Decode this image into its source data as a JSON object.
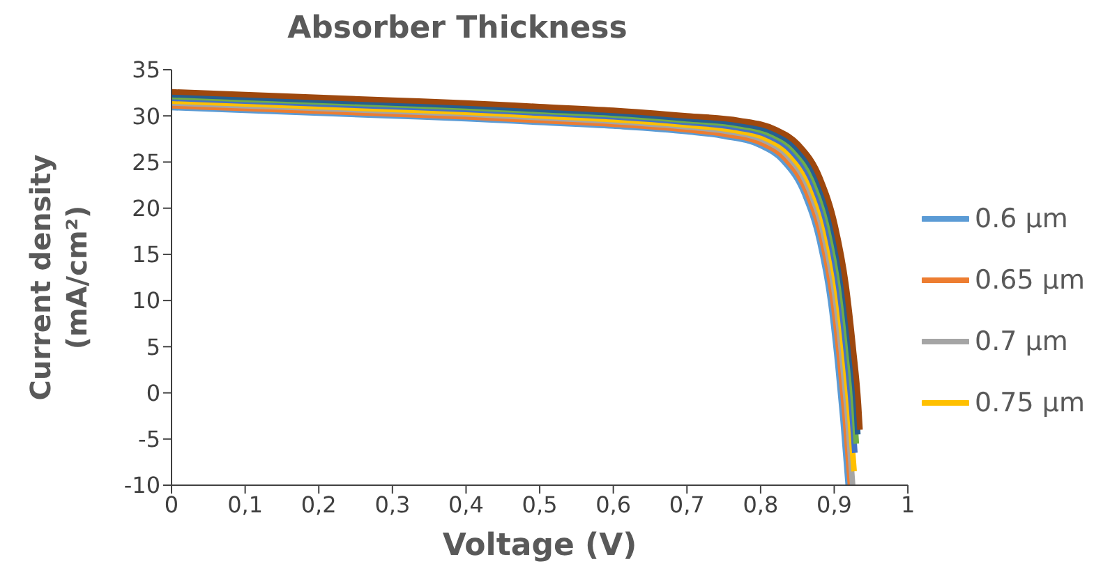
{
  "chart_data": {
    "type": "line",
    "title": "Absorber Thickness",
    "xlabel": "Voltage (V)",
    "ylabel": "Current density (mA/cm²)",
    "xlim": [
      0,
      1
    ],
    "xticks": [
      {
        "value": 0,
        "label": "0"
      },
      {
        "value": 0.1,
        "label": "0,1"
      },
      {
        "value": 0.2,
        "label": "0,2"
      },
      {
        "value": 0.3,
        "label": "0,3"
      },
      {
        "value": 0.4,
        "label": "0,4"
      },
      {
        "value": 0.5,
        "label": "0,5"
      },
      {
        "value": 0.6,
        "label": "0,6"
      },
      {
        "value": 0.7,
        "label": "0,7"
      },
      {
        "value": 0.8,
        "label": "0,8"
      },
      {
        "value": 0.9,
        "label": "0,9"
      },
      {
        "value": 1,
        "label": "1"
      }
    ],
    "ylim": [
      -10,
      35
    ],
    "yticks": [
      -10,
      -5,
      0,
      5,
      10,
      15,
      20,
      25,
      30,
      35
    ],
    "grid": false,
    "legend": "right",
    "marker": "none",
    "line_style": "solid",
    "series": [
      {
        "name": "0.6 µm",
        "color": "#5b9bd5",
        "x": [
          0,
          0.1,
          0.2,
          0.3,
          0.4,
          0.5,
          0.6,
          0.7,
          0.75,
          0.8,
          0.83,
          0.86,
          0.88,
          0.895,
          0.905,
          0.912,
          0.919
        ],
        "values": [
          30.9,
          30.6,
          30.3,
          30.0,
          29.7,
          29.3,
          28.9,
          28.3,
          27.8,
          26.8,
          25.2,
          21.5,
          16.5,
          10,
          3,
          -3,
          -10
        ]
      },
      {
        "name": "0.65 µm",
        "color": "#ed7d31",
        "x": [
          0,
          0.1,
          0.2,
          0.3,
          0.4,
          0.5,
          0.6,
          0.7,
          0.753,
          0.803,
          0.833,
          0.863,
          0.883,
          0.898,
          0.908,
          0.915,
          0.922
        ],
        "values": [
          31.1,
          30.8,
          30.5,
          30.2,
          29.9,
          29.5,
          29.1,
          28.5,
          28.0,
          27.0,
          25.4,
          21.7,
          16.7,
          10.2,
          3.2,
          -2.8,
          -10
        ]
      },
      {
        "name": "0.7 µm",
        "color": "#a5a5a5",
        "x": [
          0,
          0.1,
          0.2,
          0.3,
          0.4,
          0.5,
          0.6,
          0.7,
          0.756,
          0.806,
          0.836,
          0.866,
          0.886,
          0.901,
          0.911,
          0.918,
          0.925
        ],
        "values": [
          31.4,
          31.1,
          30.8,
          30.5,
          30.2,
          29.8,
          29.4,
          28.8,
          28.3,
          27.3,
          25.7,
          22.0,
          17.0,
          10.5,
          3.5,
          -2.5,
          -10
        ]
      },
      {
        "name": "0.75 µm",
        "color": "#ffc000",
        "x": [
          0,
          0.1,
          0.2,
          0.3,
          0.4,
          0.5,
          0.6,
          0.7,
          0.759,
          0.809,
          0.839,
          0.869,
          0.889,
          0.904,
          0.914,
          0.921,
          0.927
        ],
        "values": [
          31.6,
          31.3,
          31.0,
          30.7,
          30.4,
          30.0,
          29.6,
          29.0,
          28.5,
          27.5,
          25.9,
          22.2,
          17.2,
          10.7,
          3.7,
          -2.3,
          -8.5
        ]
      },
      {
        "color": "#4472c4",
        "x": [
          0,
          0.1,
          0.2,
          0.3,
          0.4,
          0.5,
          0.6,
          0.7,
          0.762,
          0.812,
          0.842,
          0.872,
          0.892,
          0.907,
          0.917,
          0.924,
          0.928
        ],
        "values": [
          31.9,
          31.6,
          31.3,
          31.0,
          30.7,
          30.3,
          29.9,
          29.3,
          28.8,
          27.8,
          26.2,
          22.5,
          17.5,
          11,
          4,
          -2,
          -6.5
        ]
      },
      {
        "color": "#70ad47",
        "x": [
          0,
          0.1,
          0.2,
          0.3,
          0.4,
          0.5,
          0.6,
          0.7,
          0.765,
          0.815,
          0.845,
          0.875,
          0.895,
          0.91,
          0.92,
          0.927,
          0.93
        ],
        "values": [
          32.1,
          31.8,
          31.5,
          31.2,
          30.9,
          30.5,
          30.1,
          29.5,
          29.0,
          28.0,
          26.4,
          22.7,
          17.7,
          11.2,
          4.2,
          -1.8,
          -5.5
        ]
      },
      {
        "color": "#255e91",
        "x": [
          0,
          0.1,
          0.2,
          0.3,
          0.4,
          0.5,
          0.6,
          0.7,
          0.768,
          0.818,
          0.848,
          0.878,
          0.898,
          0.913,
          0.923,
          0.93,
          0.932
        ],
        "values": [
          32.3,
          32.0,
          31.7,
          31.4,
          31.1,
          30.7,
          30.3,
          29.7,
          29.2,
          28.2,
          26.6,
          22.9,
          17.9,
          11.4,
          4.4,
          -1.6,
          -4.5
        ]
      },
      {
        "color": "#9e480e",
        "x": [
          0,
          0.1,
          0.2,
          0.3,
          0.4,
          0.5,
          0.6,
          0.7,
          0.771,
          0.821,
          0.851,
          0.881,
          0.901,
          0.916,
          0.926,
          0.933,
          0.935
        ],
        "values": [
          32.6,
          32.3,
          32.0,
          31.7,
          31.4,
          31.0,
          30.6,
          30.0,
          29.5,
          28.5,
          26.9,
          23.2,
          18.2,
          11.7,
          4.7,
          -1.3,
          -4
        ]
      }
    ]
  }
}
